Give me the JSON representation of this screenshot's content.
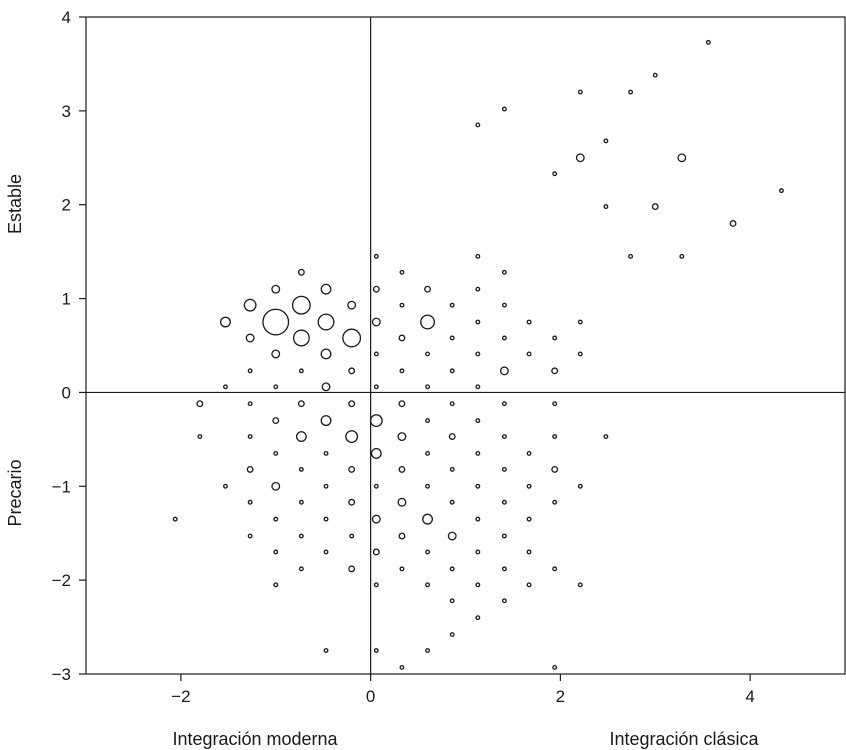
{
  "chart_data": {
    "type": "scatter",
    "marker": "bubble-outline",
    "grid": false,
    "reference_lines": {
      "x": 0,
      "y": 0
    },
    "xlim": [
      -3,
      5
    ],
    "ylim": [
      -3,
      4
    ],
    "x_ticks": [
      {
        "value": -2,
        "label": "−2"
      },
      {
        "value": 0,
        "label": "0"
      },
      {
        "value": 2,
        "label": "2"
      },
      {
        "value": 4,
        "label": "4"
      }
    ],
    "y_ticks": [
      {
        "value": -3,
        "label": "−3"
      },
      {
        "value": -2,
        "label": "−2"
      },
      {
        "value": -1,
        "label": "−1"
      },
      {
        "value": 0,
        "label": "0"
      },
      {
        "value": 1,
        "label": "1"
      },
      {
        "value": 2,
        "label": "2"
      },
      {
        "value": 3,
        "label": "3"
      },
      {
        "value": 4,
        "label": "4"
      }
    ],
    "axis_labels": {
      "x_left": "Integración moderna",
      "x_right": "Integración clásica",
      "y_top": "Estable",
      "y_bottom": "Precario"
    },
    "points": [
      {
        "x": 3.56,
        "y": 3.73,
        "size": 1
      },
      {
        "x": 3.0,
        "y": 3.38,
        "size": 1
      },
      {
        "x": 2.21,
        "y": 3.2,
        "size": 1
      },
      {
        "x": 2.74,
        "y": 3.2,
        "size": 1
      },
      {
        "x": 1.41,
        "y": 3.02,
        "size": 1
      },
      {
        "x": 1.13,
        "y": 2.85,
        "size": 1
      },
      {
        "x": 2.48,
        "y": 2.68,
        "size": 1
      },
      {
        "x": 2.21,
        "y": 2.5,
        "size": 2
      },
      {
        "x": 3.28,
        "y": 2.5,
        "size": 2
      },
      {
        "x": 1.94,
        "y": 2.33,
        "size": 1
      },
      {
        "x": 4.33,
        "y": 2.15,
        "size": 1
      },
      {
        "x": 2.48,
        "y": 1.98,
        "size": 1
      },
      {
        "x": 3.0,
        "y": 1.98,
        "size": 1.5
      },
      {
        "x": 3.82,
        "y": 1.8,
        "size": 1.5
      },
      {
        "x": 2.74,
        "y": 1.45,
        "size": 1
      },
      {
        "x": 3.28,
        "y": 1.45,
        "size": 1
      },
      {
        "x": 0.06,
        "y": 1.45,
        "size": 1
      },
      {
        "x": 1.13,
        "y": 1.45,
        "size": 1
      },
      {
        "x": -0.73,
        "y": 1.28,
        "size": 1.5
      },
      {
        "x": 0.33,
        "y": 1.28,
        "size": 1
      },
      {
        "x": 1.41,
        "y": 1.28,
        "size": 1
      },
      {
        "x": -1.0,
        "y": 1.1,
        "size": 2
      },
      {
        "x": -0.47,
        "y": 1.1,
        "size": 2.5
      },
      {
        "x": 0.06,
        "y": 1.1,
        "size": 1.5
      },
      {
        "x": 0.6,
        "y": 1.1,
        "size": 1.5
      },
      {
        "x": 1.13,
        "y": 1.1,
        "size": 1
      },
      {
        "x": -1.27,
        "y": 0.93,
        "size": 3
      },
      {
        "x": -0.73,
        "y": 0.93,
        "size": 4.5
      },
      {
        "x": -0.2,
        "y": 0.93,
        "size": 2
      },
      {
        "x": 0.33,
        "y": 0.93,
        "size": 1
      },
      {
        "x": 0.86,
        "y": 0.93,
        "size": 1
      },
      {
        "x": 1.41,
        "y": 0.93,
        "size": 1
      },
      {
        "x": -1.53,
        "y": 0.75,
        "size": 2.5
      },
      {
        "x": -1.0,
        "y": 0.75,
        "size": 6.5
      },
      {
        "x": -0.47,
        "y": 0.75,
        "size": 4
      },
      {
        "x": 0.06,
        "y": 0.75,
        "size": 2
      },
      {
        "x": 0.6,
        "y": 0.75,
        "size": 3.5
      },
      {
        "x": 1.13,
        "y": 0.75,
        "size": 1
      },
      {
        "x": 1.67,
        "y": 0.75,
        "size": 1
      },
      {
        "x": 2.21,
        "y": 0.75,
        "size": 1
      },
      {
        "x": -1.27,
        "y": 0.58,
        "size": 2
      },
      {
        "x": -0.73,
        "y": 0.58,
        "size": 4
      },
      {
        "x": -0.2,
        "y": 0.58,
        "size": 4.5
      },
      {
        "x": 0.33,
        "y": 0.58,
        "size": 1.5
      },
      {
        "x": 0.86,
        "y": 0.58,
        "size": 1
      },
      {
        "x": 1.41,
        "y": 0.58,
        "size": 1
      },
      {
        "x": 1.94,
        "y": 0.58,
        "size": 1
      },
      {
        "x": -1.0,
        "y": 0.41,
        "size": 2
      },
      {
        "x": -0.47,
        "y": 0.41,
        "size": 2.5
      },
      {
        "x": 0.06,
        "y": 0.41,
        "size": 1
      },
      {
        "x": 0.6,
        "y": 0.41,
        "size": 1
      },
      {
        "x": 1.13,
        "y": 0.41,
        "size": 1
      },
      {
        "x": 1.67,
        "y": 0.41,
        "size": 1
      },
      {
        "x": 2.21,
        "y": 0.41,
        "size": 1
      },
      {
        "x": -1.27,
        "y": 0.23,
        "size": 1
      },
      {
        "x": -0.73,
        "y": 0.23,
        "size": 1
      },
      {
        "x": -0.2,
        "y": 0.23,
        "size": 1.5
      },
      {
        "x": 0.33,
        "y": 0.23,
        "size": 1
      },
      {
        "x": 0.86,
        "y": 0.23,
        "size": 1
      },
      {
        "x": 1.41,
        "y": 0.23,
        "size": 2
      },
      {
        "x": 1.94,
        "y": 0.23,
        "size": 1.5
      },
      {
        "x": -1.53,
        "y": 0.06,
        "size": 1
      },
      {
        "x": -1.0,
        "y": 0.06,
        "size": 1
      },
      {
        "x": -0.47,
        "y": 0.06,
        "size": 2
      },
      {
        "x": 0.06,
        "y": 0.06,
        "size": 1
      },
      {
        "x": 0.6,
        "y": 0.06,
        "size": 1
      },
      {
        "x": 1.13,
        "y": 0.06,
        "size": 1
      },
      {
        "x": -1.8,
        "y": -0.12,
        "size": 1.5
      },
      {
        "x": -1.27,
        "y": -0.12,
        "size": 1
      },
      {
        "x": -0.73,
        "y": -0.12,
        "size": 1.5
      },
      {
        "x": -0.2,
        "y": -0.12,
        "size": 1.5
      },
      {
        "x": 0.33,
        "y": -0.12,
        "size": 1.5
      },
      {
        "x": 0.86,
        "y": -0.12,
        "size": 1
      },
      {
        "x": 1.41,
        "y": -0.12,
        "size": 1
      },
      {
        "x": 1.94,
        "y": -0.12,
        "size": 1
      },
      {
        "x": -1.0,
        "y": -0.3,
        "size": 1.5
      },
      {
        "x": -0.47,
        "y": -0.3,
        "size": 2.5
      },
      {
        "x": 0.06,
        "y": -0.3,
        "size": 3
      },
      {
        "x": 0.6,
        "y": -0.3,
        "size": 1
      },
      {
        "x": 1.13,
        "y": -0.3,
        "size": 1
      },
      {
        "x": -1.8,
        "y": -0.47,
        "size": 1
      },
      {
        "x": -1.27,
        "y": -0.47,
        "size": 1
      },
      {
        "x": -0.73,
        "y": -0.47,
        "size": 2.5
      },
      {
        "x": -0.2,
        "y": -0.47,
        "size": 3
      },
      {
        "x": 0.33,
        "y": -0.47,
        "size": 2
      },
      {
        "x": 0.86,
        "y": -0.47,
        "size": 1.5
      },
      {
        "x": 1.41,
        "y": -0.47,
        "size": 1
      },
      {
        "x": 1.94,
        "y": -0.47,
        "size": 1
      },
      {
        "x": 2.48,
        "y": -0.47,
        "size": 1
      },
      {
        "x": -1.0,
        "y": -0.65,
        "size": 1
      },
      {
        "x": -0.47,
        "y": -0.65,
        "size": 1
      },
      {
        "x": 0.06,
        "y": -0.65,
        "size": 2.5
      },
      {
        "x": 0.6,
        "y": -0.65,
        "size": 1
      },
      {
        "x": 1.13,
        "y": -0.65,
        "size": 1
      },
      {
        "x": 1.67,
        "y": -0.65,
        "size": 1
      },
      {
        "x": -1.27,
        "y": -0.82,
        "size": 1.5
      },
      {
        "x": -0.73,
        "y": -0.82,
        "size": 1
      },
      {
        "x": -0.2,
        "y": -0.82,
        "size": 1.5
      },
      {
        "x": 0.33,
        "y": -0.82,
        "size": 1.5
      },
      {
        "x": 0.86,
        "y": -0.82,
        "size": 1
      },
      {
        "x": 1.41,
        "y": -0.82,
        "size": 1
      },
      {
        "x": 1.94,
        "y": -0.82,
        "size": 1.5
      },
      {
        "x": -1.53,
        "y": -1.0,
        "size": 1
      },
      {
        "x": -1.0,
        "y": -1.0,
        "size": 2
      },
      {
        "x": -0.47,
        "y": -1.0,
        "size": 1
      },
      {
        "x": 0.06,
        "y": -1.0,
        "size": 1
      },
      {
        "x": 0.6,
        "y": -1.0,
        "size": 1
      },
      {
        "x": 1.13,
        "y": -1.0,
        "size": 1
      },
      {
        "x": 1.67,
        "y": -1.0,
        "size": 1
      },
      {
        "x": 2.21,
        "y": -1.0,
        "size": 1
      },
      {
        "x": -1.27,
        "y": -1.17,
        "size": 1
      },
      {
        "x": -0.73,
        "y": -1.17,
        "size": 1
      },
      {
        "x": -0.2,
        "y": -1.17,
        "size": 1.5
      },
      {
        "x": 0.33,
        "y": -1.17,
        "size": 2
      },
      {
        "x": 0.86,
        "y": -1.17,
        "size": 1
      },
      {
        "x": 1.41,
        "y": -1.17,
        "size": 1
      },
      {
        "x": 1.94,
        "y": -1.17,
        "size": 1
      },
      {
        "x": -2.06,
        "y": -1.35,
        "size": 1
      },
      {
        "x": -1.0,
        "y": -1.35,
        "size": 1
      },
      {
        "x": -0.47,
        "y": -1.35,
        "size": 1
      },
      {
        "x": 0.06,
        "y": -1.35,
        "size": 2
      },
      {
        "x": 0.6,
        "y": -1.35,
        "size": 2.5
      },
      {
        "x": 1.13,
        "y": -1.35,
        "size": 1
      },
      {
        "x": 1.67,
        "y": -1.35,
        "size": 1
      },
      {
        "x": -1.27,
        "y": -1.53,
        "size": 1
      },
      {
        "x": -0.73,
        "y": -1.53,
        "size": 1
      },
      {
        "x": -0.2,
        "y": -1.53,
        "size": 1
      },
      {
        "x": 0.33,
        "y": -1.53,
        "size": 1.5
      },
      {
        "x": 0.86,
        "y": -1.53,
        "size": 2
      },
      {
        "x": 1.41,
        "y": -1.53,
        "size": 1
      },
      {
        "x": -1.0,
        "y": -1.7,
        "size": 1
      },
      {
        "x": -0.47,
        "y": -1.7,
        "size": 1
      },
      {
        "x": 0.06,
        "y": -1.7,
        "size": 1.5
      },
      {
        "x": 0.6,
        "y": -1.7,
        "size": 1
      },
      {
        "x": 1.13,
        "y": -1.7,
        "size": 1
      },
      {
        "x": 1.67,
        "y": -1.7,
        "size": 1
      },
      {
        "x": -0.73,
        "y": -1.88,
        "size": 1
      },
      {
        "x": -0.2,
        "y": -1.88,
        "size": 1.5
      },
      {
        "x": 0.33,
        "y": -1.88,
        "size": 1
      },
      {
        "x": 0.86,
        "y": -1.88,
        "size": 1
      },
      {
        "x": 1.41,
        "y": -1.88,
        "size": 1
      },
      {
        "x": 1.94,
        "y": -1.88,
        "size": 1
      },
      {
        "x": -1.0,
        "y": -2.05,
        "size": 1
      },
      {
        "x": 0.06,
        "y": -2.05,
        "size": 1
      },
      {
        "x": 0.6,
        "y": -2.05,
        "size": 1
      },
      {
        "x": 1.13,
        "y": -2.05,
        "size": 1
      },
      {
        "x": 1.67,
        "y": -2.05,
        "size": 1
      },
      {
        "x": 2.21,
        "y": -2.05,
        "size": 1
      },
      {
        "x": 0.86,
        "y": -2.22,
        "size": 1
      },
      {
        "x": 1.41,
        "y": -2.22,
        "size": 1
      },
      {
        "x": 1.13,
        "y": -2.4,
        "size": 1
      },
      {
        "x": 0.86,
        "y": -2.58,
        "size": 1
      },
      {
        "x": -0.47,
        "y": -2.75,
        "size": 1
      },
      {
        "x": 0.06,
        "y": -2.75,
        "size": 1
      },
      {
        "x": 0.6,
        "y": -2.75,
        "size": 1
      },
      {
        "x": 0.33,
        "y": -2.93,
        "size": 1
      },
      {
        "x": 1.94,
        "y": -2.93,
        "size": 1
      }
    ]
  }
}
